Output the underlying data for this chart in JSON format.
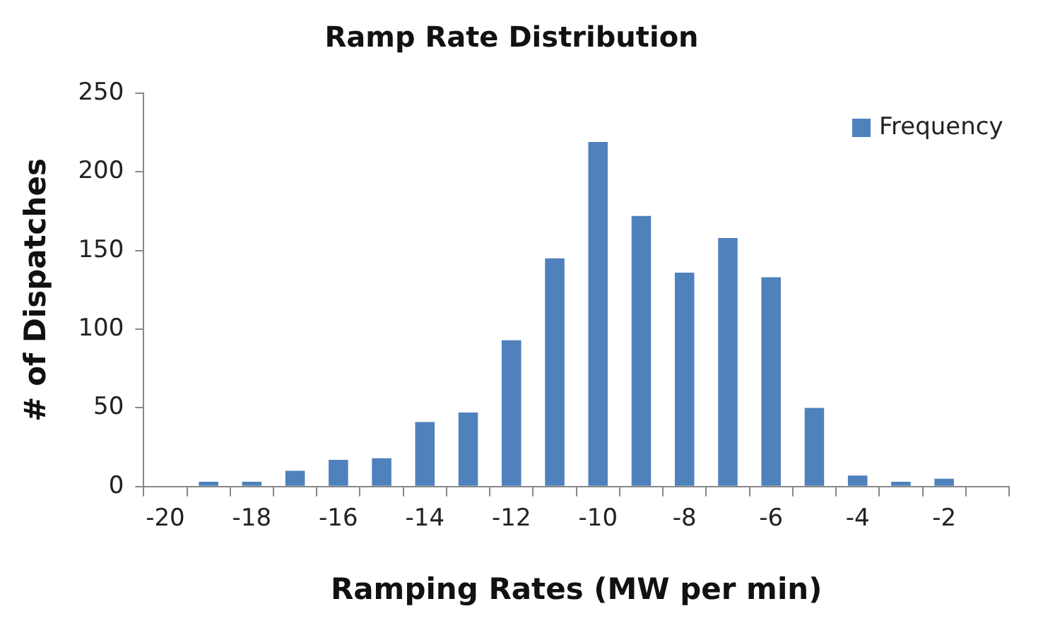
{
  "chart_data": {
    "type": "bar",
    "title": "Ramp Rate Distribution",
    "xlabel": "Ramping Rates (MW per min)",
    "ylabel": "# of Dispatches",
    "categories": [
      "-20",
      null,
      "-18",
      null,
      "-16",
      null,
      "-14",
      null,
      "-12",
      null,
      "-10",
      null,
      "-8",
      null,
      "-6",
      null,
      "-4",
      null,
      "-2",
      null
    ],
    "series": [
      {
        "name": "Frequency",
        "color": "#4f81bd",
        "values": [
          0,
          3,
          3,
          10,
          17,
          18,
          41,
          47,
          93,
          145,
          219,
          172,
          136,
          158,
          133,
          50,
          7,
          3,
          5,
          0
        ]
      }
    ],
    "ylim": [
      0,
      250
    ],
    "yticks": [
      0,
      50,
      100,
      150,
      200,
      250
    ],
    "grid": false,
    "legend": "top right"
  }
}
